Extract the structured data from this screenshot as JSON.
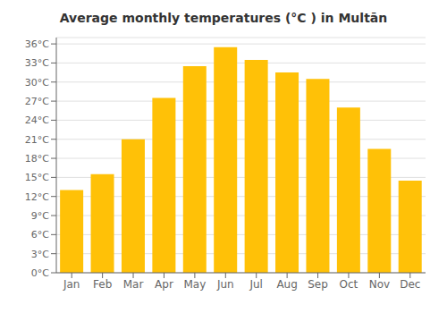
{
  "chart_data": {
    "type": "bar",
    "title": "Average monthly temperatures (°C ) in Multān",
    "categories": [
      "Jan",
      "Feb",
      "Mar",
      "Apr",
      "May",
      "Jun",
      "Jul",
      "Aug",
      "Sep",
      "Oct",
      "Nov",
      "Dec"
    ],
    "values": [
      13.0,
      15.5,
      21.0,
      27.5,
      32.5,
      35.5,
      33.5,
      31.5,
      30.5,
      26.0,
      19.5,
      14.5
    ],
    "color": "#FFC107",
    "ylim": [
      0,
      37
    ],
    "yticks": [
      {
        "value": 0,
        "label": "0°C"
      },
      {
        "value": 3,
        "label": "3°C"
      },
      {
        "value": 6,
        "label": "6°C"
      },
      {
        "value": 9,
        "label": "9°C"
      },
      {
        "value": 12,
        "label": "12°C"
      },
      {
        "value": 15,
        "label": "15°C"
      },
      {
        "value": 18,
        "label": "18°C"
      },
      {
        "value": 21,
        "label": "21°C"
      },
      {
        "value": 24,
        "label": "24°C"
      },
      {
        "value": 27,
        "label": "27°C"
      },
      {
        "value": 30,
        "label": "30°C"
      },
      {
        "value": 33,
        "label": "33°C"
      },
      {
        "value": 36,
        "label": "36°C"
      }
    ],
    "grid": true
  }
}
